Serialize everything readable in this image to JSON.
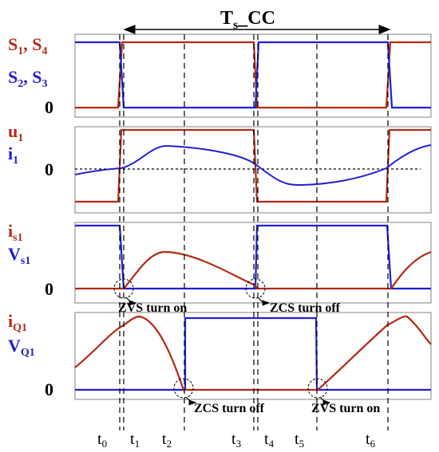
{
  "period": {
    "main": "T",
    "sub": "s",
    "tail": "_CC"
  },
  "panels": {
    "p1": {
      "red_label": "S",
      "red_sub1": "1",
      "red_sep": ", S",
      "red_sub2": "4",
      "blue_label": "S",
      "blue_sub1": "2",
      "blue_sep": ", S",
      "blue_sub2": "3",
      "zero": "0"
    },
    "p2": {
      "red_label": "u",
      "red_sub": "1",
      "blue_label": "i",
      "blue_sub": "1",
      "zero": "0"
    },
    "p3": {
      "red_label": "i",
      "red_sub": "s1",
      "blue_label": "V",
      "blue_sub": "s1",
      "zero": "0"
    },
    "p4": {
      "red_label": "i",
      "red_sub": "Q1",
      "blue_label": "V",
      "blue_sub": "Q1",
      "zero": "0"
    }
  },
  "annotations": {
    "zvs_on_1": "ZVS turn on",
    "zcs_off_1": "ZCS turn off",
    "zcs_off_2": "ZCS turn off",
    "zvs_on_2": "ZVS turn on"
  },
  "time_labels": [
    {
      "t": "t",
      "sub": "0"
    },
    {
      "t": "t",
      "sub": "1"
    },
    {
      "t": "t",
      "sub": "2"
    },
    {
      "t": "t",
      "sub": "3"
    },
    {
      "t": "t",
      "sub": "4"
    },
    {
      "t": "t",
      "sub": "5"
    },
    {
      "t": "t",
      "sub": "6"
    }
  ],
  "colors": {
    "red": "#b22a14",
    "blue": "#1f1fd6",
    "label_red": "#b52a1c",
    "label_blue": "#1f1fc8"
  }
}
